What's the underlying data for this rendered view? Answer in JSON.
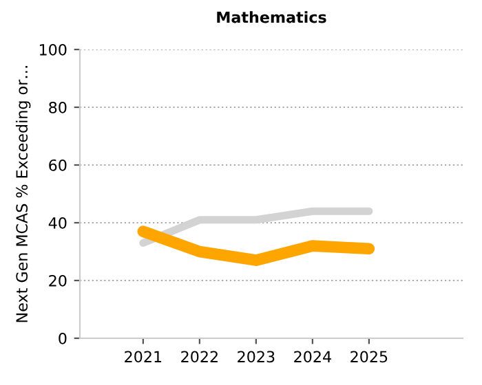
{
  "chart_data": {
    "type": "line",
    "title": "Mathematics",
    "ylabel": "Next Gen MCAS % Exceeding or…",
    "categories": [
      "2021",
      "2022",
      "2023",
      "2024",
      "2025"
    ],
    "series": [
      {
        "color": "#d3d3d3",
        "values": [
          33,
          41,
          41,
          44,
          44
        ]
      },
      {
        "color": "#ffa500",
        "values": [
          37,
          30,
          27,
          32,
          31
        ]
      }
    ],
    "ylim": [
      0,
      100
    ],
    "yticks": [
      0,
      20,
      40,
      60,
      80,
      100
    ],
    "grid": "y",
    "legend": false
  }
}
